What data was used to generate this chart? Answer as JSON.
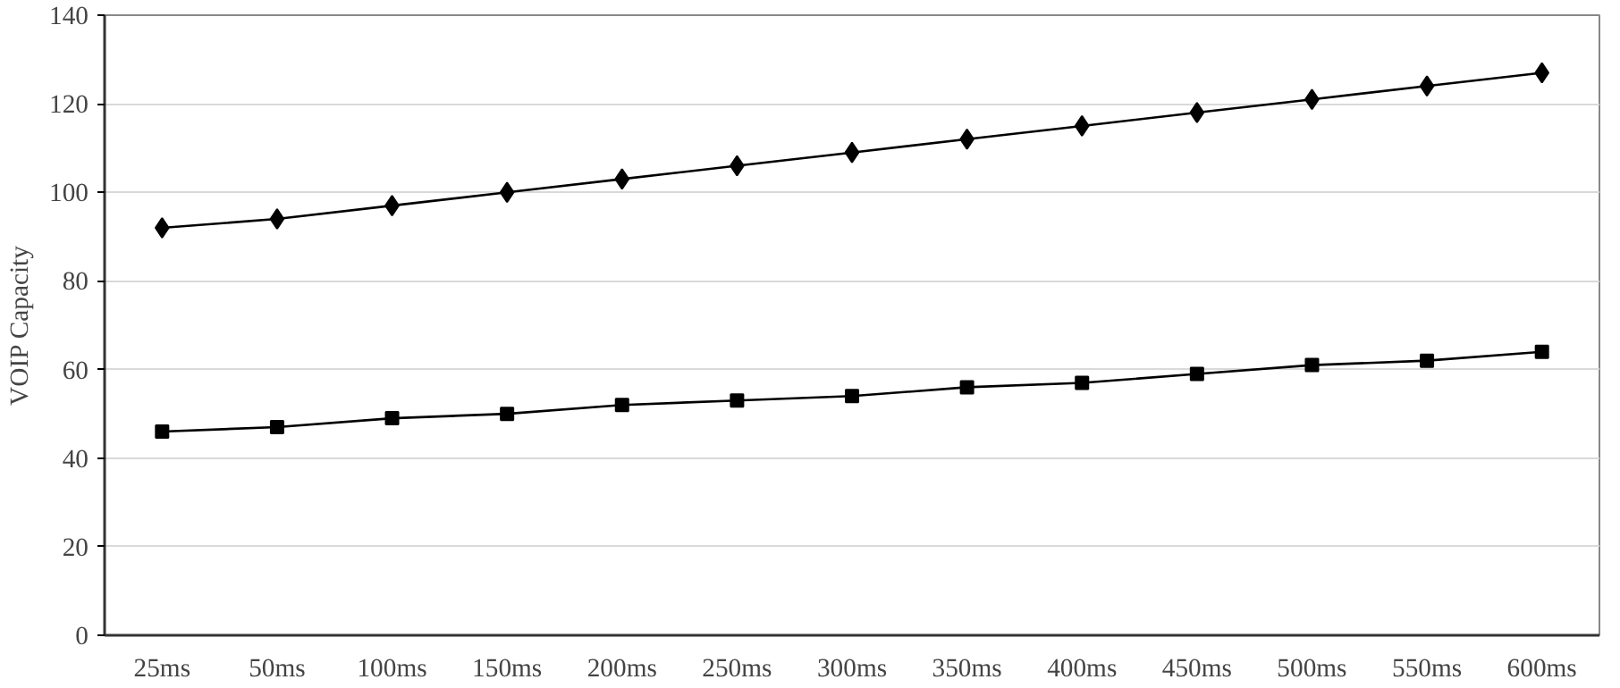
{
  "chart_data": {
    "type": "line",
    "ylabel": "VOIP Capacity",
    "categories": [
      "25ms",
      "50ms",
      "100ms",
      "150ms",
      "200ms",
      "250ms",
      "300ms",
      "350ms",
      "400ms",
      "450ms",
      "500ms",
      "550ms",
      "600ms"
    ],
    "series": [
      {
        "color": "#000000",
        "marker": "diamond",
        "values": [
          92,
          94,
          97,
          100,
          103,
          106,
          109,
          112,
          115,
          118,
          121,
          124,
          127
        ]
      },
      {
        "color": "#000000",
        "marker": "square",
        "values": [
          46,
          47,
          49,
          50,
          52,
          53,
          54,
          56,
          57,
          59,
          61,
          62,
          64
        ]
      }
    ],
    "ylim": [
      0,
      140
    ],
    "yticks": [
      0,
      20,
      40,
      60,
      80,
      100,
      120,
      140
    ],
    "grid": "y",
    "line_style": "solid"
  }
}
